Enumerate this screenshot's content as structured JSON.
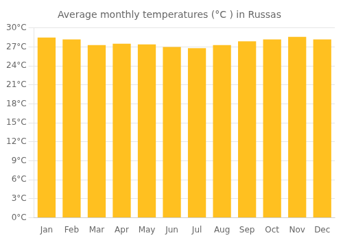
{
  "chart_data": {
    "type": "bar",
    "title": "Average monthly temperatures (°C ) in Russas",
    "categories": [
      "Jan",
      "Feb",
      "Mar",
      "Apr",
      "May",
      "Jun",
      "Jul",
      "Aug",
      "Sep",
      "Oct",
      "Nov",
      "Dec"
    ],
    "values": [
      28.5,
      28.2,
      27.3,
      27.5,
      27.4,
      27.0,
      26.8,
      27.3,
      27.9,
      28.2,
      28.6,
      28.2
    ],
    "color": "#FFC020",
    "ylim": [
      0,
      30
    ],
    "yticks": [
      {
        "value": 0,
        "label": "0°C"
      },
      {
        "value": 3,
        "label": "3°C"
      },
      {
        "value": 6,
        "label": "6°C"
      },
      {
        "value": 9,
        "label": "9°C"
      },
      {
        "value": 12,
        "label": "12°C"
      },
      {
        "value": 15,
        "label": "15°C"
      },
      {
        "value": 18,
        "label": "18°C"
      },
      {
        "value": 21,
        "label": "21°C"
      },
      {
        "value": 24,
        "label": "24°C"
      },
      {
        "value": 27,
        "label": "27°C"
      },
      {
        "value": 30,
        "label": "30°C"
      }
    ],
    "grid": true
  }
}
